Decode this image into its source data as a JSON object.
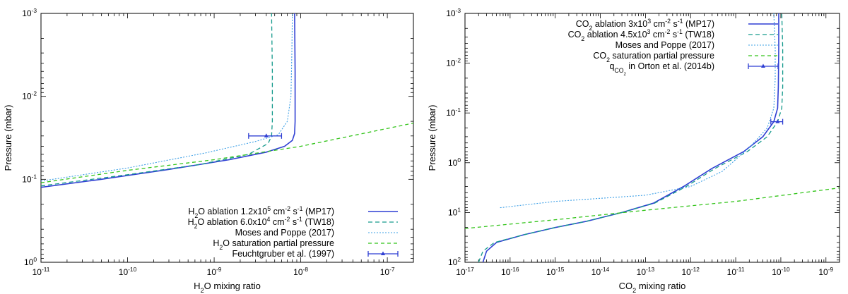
{
  "chart_data": [
    {
      "type": "line",
      "xscale": "log",
      "yscale": "log",
      "xlim": [
        1e-11,
        2e-07
      ],
      "ylim": [
        1.0,
        0.001
      ],
      "xlabel": "H₂O mixing ratio",
      "ylabel": "Pressure (mbar)",
      "xlabel_parts": [
        "H",
        "2",
        "O mixing ratio"
      ],
      "x_ticks": [
        {
          "value": 1e-11,
          "mant": "10",
          "exp": "-11"
        },
        {
          "value": 1e-10,
          "mant": "10",
          "exp": "-10"
        },
        {
          "value": 1e-09,
          "mant": "10",
          "exp": "-9"
        },
        {
          "value": 1e-08,
          "mant": "10",
          "exp": "-8"
        },
        {
          "value": 1e-07,
          "mant": "10",
          "exp": "-7"
        }
      ],
      "y_ticks": [
        {
          "value": 0.001,
          "mant": "10",
          "exp": "-3"
        },
        {
          "value": 0.01,
          "mant": "10",
          "exp": "-2"
        },
        {
          "value": 0.1,
          "mant": "10",
          "exp": "-1"
        },
        {
          "value": 1,
          "mant": "10",
          "exp": "0"
        }
      ],
      "legend_position": "bottom-right",
      "series": [
        {
          "name": "H₂O ablation 1.2x10⁵ cm⁻² s⁻¹ (MP17)",
          "legend_parts": [
            [
              "H",
              ""
            ],
            [
              "2",
              "sub"
            ],
            [
              "O ablation 1.2x10",
              ""
            ],
            [
              "5",
              "sup"
            ],
            [
              " cm",
              ""
            ],
            [
              "-2",
              "sup"
            ],
            [
              " s",
              ""
            ],
            [
              "-1",
              "sup"
            ],
            [
              " (MP17)",
              ""
            ]
          ],
          "color": "#2f3fd3",
          "dash": "",
          "width": 1.6,
          "points": [
            [
              1e-11,
              0.125
            ],
            [
              5e-11,
              0.1
            ],
            [
              3e-10,
              0.076
            ],
            [
              1.5e-09,
              0.058
            ],
            [
              4e-09,
              0.047
            ],
            [
              6.5e-09,
              0.04
            ],
            [
              8e-09,
              0.034
            ],
            [
              8.5e-09,
              0.028
            ],
            [
              8.6e-09,
              0.02
            ],
            [
              8.6e-09,
              0.005
            ],
            [
              8.5e-09,
              0.001
            ]
          ]
        },
        {
          "name": "H₂O ablation 6.0x10⁴ cm⁻² s⁻¹ (TW18)",
          "legend_parts": [
            [
              "H",
              ""
            ],
            [
              "2",
              "sub"
            ],
            [
              "O ablation 6.0x10",
              ""
            ],
            [
              "4",
              "sup"
            ],
            [
              " cm",
              ""
            ],
            [
              "-2",
              "sup"
            ],
            [
              " s",
              ""
            ],
            [
              "-1",
              "sup"
            ],
            [
              " (TW18)",
              ""
            ]
          ],
          "color": "#159a8c",
          "dash": "6 4",
          "width": 1.3,
          "points": [
            [
              1e-11,
              0.12
            ],
            [
              1e-10,
              0.088
            ],
            [
              7e-10,
              0.066
            ],
            [
              2.5e-09,
              0.05
            ],
            [
              4.2e-09,
              0.037
            ],
            [
              4.6e-09,
              0.03
            ],
            [
              4.7e-09,
              0.02
            ],
            [
              4.7e-09,
              0.005
            ],
            [
              4.6e-09,
              0.001
            ]
          ]
        },
        {
          "name": "Moses and Poppe (2017)",
          "legend_parts": [
            [
              "Moses and Poppe (2017)",
              ""
            ]
          ],
          "color": "#3ea0e6",
          "dash": "2 2",
          "width": 1.1,
          "points": [
            [
              1e-11,
              0.105
            ],
            [
              1e-10,
              0.073
            ],
            [
              8e-10,
              0.048
            ],
            [
              3e-09,
              0.035
            ],
            [
              5.5e-09,
              0.029
            ],
            [
              7e-09,
              0.02
            ],
            [
              7.7e-09,
              0.01
            ],
            [
              7.9e-09,
              0.003
            ],
            [
              8e-09,
              0.001
            ]
          ]
        },
        {
          "name": "H₂O saturation partial pressure",
          "legend_parts": [
            [
              "H",
              ""
            ],
            [
              "2",
              "sub"
            ],
            [
              "O saturation partial pressure",
              ""
            ]
          ],
          "color": "#33c41a",
          "dash": "5 4",
          "width": 1.3,
          "points": [
            [
              1e-11,
              0.11
            ],
            [
              1e-10,
              0.078
            ],
            [
              1e-09,
              0.058
            ],
            [
              1e-08,
              0.04
            ],
            [
              2e-07,
              0.021
            ]
          ]
        }
      ],
      "errorbar": {
        "name": "Feuchtgruber et al. (1997)",
        "legend_parts": [
          [
            "Feuchtgruber et al. (1997)",
            ""
          ]
        ],
        "color": "#2f3fd3",
        "x": 4e-09,
        "xerr_low": 2.5e-09,
        "xerr_high": 6e-09,
        "y": 0.03
      }
    },
    {
      "type": "line",
      "xscale": "log",
      "yscale": "log",
      "xlim": [
        1e-17,
        2e-09
      ],
      "ylim": [
        100,
        0.001
      ],
      "xlabel": "CO₂ mixing ratio",
      "ylabel": "Pressure (mbar)",
      "xlabel_parts": [
        "CO",
        "2",
        " mixing ratio"
      ],
      "x_ticks": [
        {
          "value": 1e-17,
          "mant": "10",
          "exp": "-17"
        },
        {
          "value": 1e-16,
          "mant": "10",
          "exp": "-16"
        },
        {
          "value": 1e-15,
          "mant": "10",
          "exp": "-15"
        },
        {
          "value": 1e-14,
          "mant": "10",
          "exp": "-14"
        },
        {
          "value": 1e-13,
          "mant": "10",
          "exp": "-13"
        },
        {
          "value": 1e-12,
          "mant": "10",
          "exp": "-12"
        },
        {
          "value": 1e-11,
          "mant": "10",
          "exp": "-11"
        },
        {
          "value": 1e-10,
          "mant": "10",
          "exp": "-10"
        },
        {
          "value": 1e-09,
          "mant": "10",
          "exp": "-9"
        }
      ],
      "y_ticks": [
        {
          "value": 0.001,
          "mant": "10",
          "exp": "-3"
        },
        {
          "value": 0.01,
          "mant": "10",
          "exp": "-2"
        },
        {
          "value": 0.1,
          "mant": "10",
          "exp": "-1"
        },
        {
          "value": 1,
          "mant": "10",
          "exp": "0"
        },
        {
          "value": 10,
          "mant": "10",
          "exp": "1"
        },
        {
          "value": 100,
          "mant": "10",
          "exp": "2"
        }
      ],
      "legend_position": "top-right",
      "series": [
        {
          "name": "CO₂ ablation 3x10³ cm⁻² s⁻¹ (MP17)",
          "legend_parts": [
            [
              "CO",
              ""
            ],
            [
              "2",
              "sub"
            ],
            [
              " ablation 3x10",
              ""
            ],
            [
              "3",
              "sup"
            ],
            [
              " cm",
              ""
            ],
            [
              "-2",
              "sup"
            ],
            [
              " s",
              ""
            ],
            [
              "-1",
              "sup"
            ],
            [
              " (MP17)",
              ""
            ]
          ],
          "color": "#2f3fd3",
          "dash": "",
          "width": 1.6,
          "points": [
            [
              2.5e-17,
              100
            ],
            [
              3e-17,
              60
            ],
            [
              5e-17,
              40
            ],
            [
              2e-16,
              28
            ],
            [
              1e-15,
              20
            ],
            [
              5e-15,
              15
            ],
            [
              3e-14,
              10
            ],
            [
              1.5e-13,
              6.5
            ],
            [
              7e-13,
              3
            ],
            [
              3e-12,
              1.3
            ],
            [
              1.5e-11,
              0.6
            ],
            [
              4e-11,
              0.3
            ],
            [
              7e-11,
              0.15
            ],
            [
              8.5e-11,
              0.08
            ],
            [
              8.8e-11,
              0.03
            ],
            [
              9e-11,
              0.005
            ],
            [
              9e-11,
              0.001
            ]
          ]
        },
        {
          "name": "CO₂ ablation 4.5x10³ cm⁻² s⁻¹ (TW18)",
          "legend_parts": [
            [
              "CO",
              ""
            ],
            [
              "2",
              "sub"
            ],
            [
              " ablation 4.5x10",
              ""
            ],
            [
              "3",
              "sup"
            ],
            [
              " cm",
              ""
            ],
            [
              "-2",
              "sup"
            ],
            [
              " s",
              ""
            ],
            [
              "-1",
              "sup"
            ],
            [
              " (TW18)",
              ""
            ]
          ],
          "color": "#159a8c",
          "dash": "6 4",
          "width": 1.3,
          "points": [
            [
              2e-17,
              100
            ],
            [
              2.5e-17,
              60
            ],
            [
              4.5e-17,
              40
            ],
            [
              2e-16,
              28
            ],
            [
              1e-15,
              20
            ],
            [
              5e-15,
              15
            ],
            [
              3e-14,
              10
            ],
            [
              1.6e-13,
              6.5
            ],
            [
              8e-13,
              3
            ],
            [
              3.5e-12,
              1.3
            ],
            [
              1.8e-11,
              0.6
            ],
            [
              5e-11,
              0.3
            ],
            [
              8.5e-11,
              0.15
            ],
            [
              1.05e-10,
              0.08
            ],
            [
              1.1e-10,
              0.03
            ],
            [
              1.1e-10,
              0.005
            ],
            [
              1.05e-10,
              0.001
            ]
          ]
        },
        {
          "name": "Moses and Poppe (2017)",
          "legend_parts": [
            [
              "Moses and Poppe (2017)",
              ""
            ]
          ],
          "color": "#3ea0e6",
          "dash": "2 2",
          "width": 1.1,
          "points": [
            [
              6e-17,
              8
            ],
            [
              1e-15,
              6
            ],
            [
              1e-13,
              4.5
            ],
            [
              1e-12,
              3
            ],
            [
              5e-12,
              1.5
            ],
            [
              2e-11,
              0.5
            ],
            [
              5e-11,
              0.2
            ],
            [
              7e-11,
              0.08
            ],
            [
              7.5e-11,
              0.02
            ],
            [
              7.5e-11,
              0.005
            ],
            [
              7e-11,
              0.001
            ]
          ]
        },
        {
          "name": "CO₂ saturation partial pressure",
          "legend_parts": [
            [
              "CO",
              ""
            ],
            [
              "2",
              "sub"
            ],
            [
              " saturation partial pressure",
              ""
            ]
          ],
          "color": "#33c41a",
          "dash": "5 4",
          "width": 1.3,
          "points": [
            [
              1e-17,
              21
            ],
            [
              1e-15,
              14
            ],
            [
              1e-13,
              9
            ],
            [
              1e-11,
              6
            ],
            [
              2e-09,
              3.2
            ]
          ]
        }
      ],
      "errorbar": {
        "name": "q_CO2 in Orton et al. (2014b)",
        "legend_parts": [
          [
            "q",
            ""
          ],
          [
            "CO",
            ""
          ],
          [
            "2",
            ""
          ]
        ],
        "legend_suffix": " in Orton et al. (2014b)",
        "color": "#2f3fd3",
        "x": 8.5e-11,
        "xerr_low": 6e-11,
        "xerr_high": 1.1e-10,
        "y": 0.15
      }
    }
  ]
}
